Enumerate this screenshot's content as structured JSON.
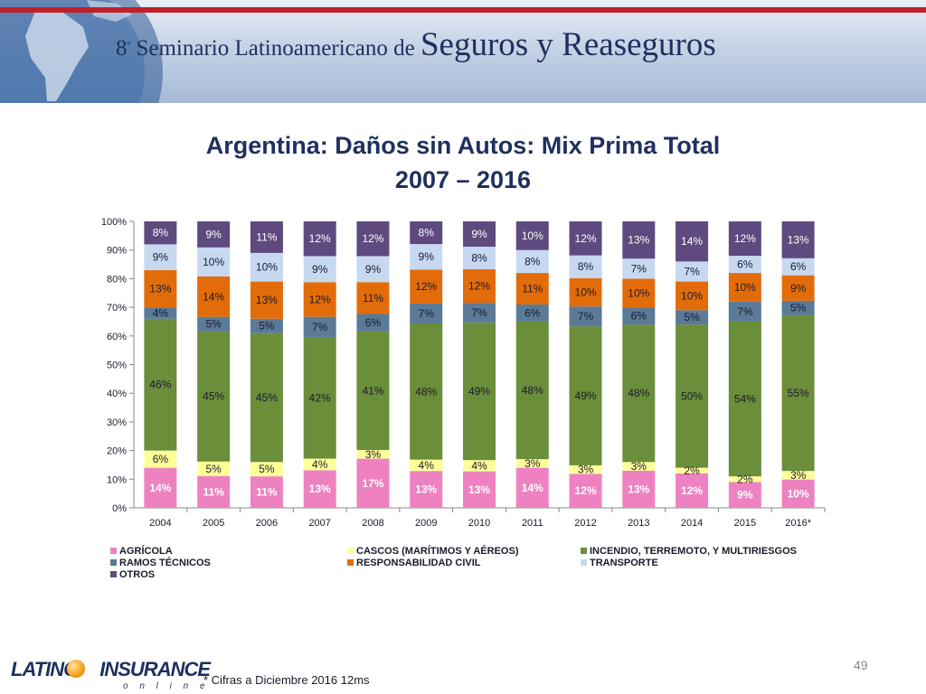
{
  "header": {
    "title_prefix": "8",
    "title_sup": "º",
    "title_small": " Seminario Latinoamericano de ",
    "title_big": "Seguros y Reaseguros"
  },
  "title_line1": "Argentina: Daños sin Autos: Mix Prima Total",
  "title_line2": "2007 – 2016",
  "colors": {
    "agricola": "#ee82c1",
    "cascos": "#ffff99",
    "incendio": "#6b8e3a",
    "ramos_tecnicos": "#5a7a98",
    "responsabilidad_civil": "#e36c0a",
    "transporte": "#c6d9f1",
    "otros": "#5e4a7e",
    "header_text": "#1f2f5e"
  },
  "chart_data": {
    "type": "bar",
    "stacked": true,
    "title": "Argentina: Daños sin Autos: Mix Prima Total 2007 – 2016",
    "categories": [
      "2004",
      "2005",
      "2006",
      "2007",
      "2008",
      "2009",
      "2010",
      "2011",
      "2012",
      "2013",
      "2014",
      "2015",
      "2016*"
    ],
    "y_ticks": [
      "0%",
      "10%",
      "20%",
      "30%",
      "40%",
      "50%",
      "60%",
      "70%",
      "80%",
      "90%",
      "100%"
    ],
    "ylim": [
      0,
      100
    ],
    "series": [
      {
        "key": "agricola",
        "name": "AGRÍCOLA",
        "values": [
          14,
          11,
          11,
          13,
          17,
          13,
          13,
          14,
          12,
          13,
          12,
          9,
          10
        ]
      },
      {
        "key": "cascos",
        "name": "CASCOS (MARÍTIMOS Y AÉREOS)",
        "values": [
          6,
          5,
          5,
          4,
          3,
          4,
          4,
          3,
          3,
          3,
          2,
          2,
          3
        ]
      },
      {
        "key": "incendio",
        "name": "INCENDIO, TERREMOTO, Y MULTIRIESGOS",
        "values": [
          46,
          45,
          45,
          42,
          41,
          48,
          49,
          48,
          49,
          48,
          50,
          54,
          55
        ]
      },
      {
        "key": "ramos_tecnicos",
        "name": "RAMOS TÉCNICOS",
        "values": [
          4,
          5,
          5,
          7,
          6,
          7,
          7,
          6,
          7,
          6,
          5,
          7,
          5
        ]
      },
      {
        "key": "responsabilidad_civil",
        "name": "RESPONSABILIDAD CIVIL",
        "values": [
          13,
          14,
          13,
          12,
          11,
          12,
          12,
          11,
          10,
          10,
          10,
          10,
          9
        ]
      },
      {
        "key": "transporte",
        "name": "TRANSPORTE",
        "values": [
          9,
          10,
          10,
          9,
          9,
          9,
          8,
          8,
          8,
          7,
          7,
          6,
          6
        ]
      },
      {
        "key": "otros",
        "name": "OTROS",
        "values": [
          8,
          9,
          11,
          12,
          12,
          8,
          9,
          10,
          12,
          13,
          14,
          12,
          13
        ]
      }
    ],
    "legend_position": "bottom"
  },
  "footnote": "* Cifras a Diciembre 2016 12ms",
  "page_number": "49",
  "logo": {
    "left_text": "LATINO",
    "right_text": "INSURANCE",
    "tagline": "o n l i n e"
  }
}
